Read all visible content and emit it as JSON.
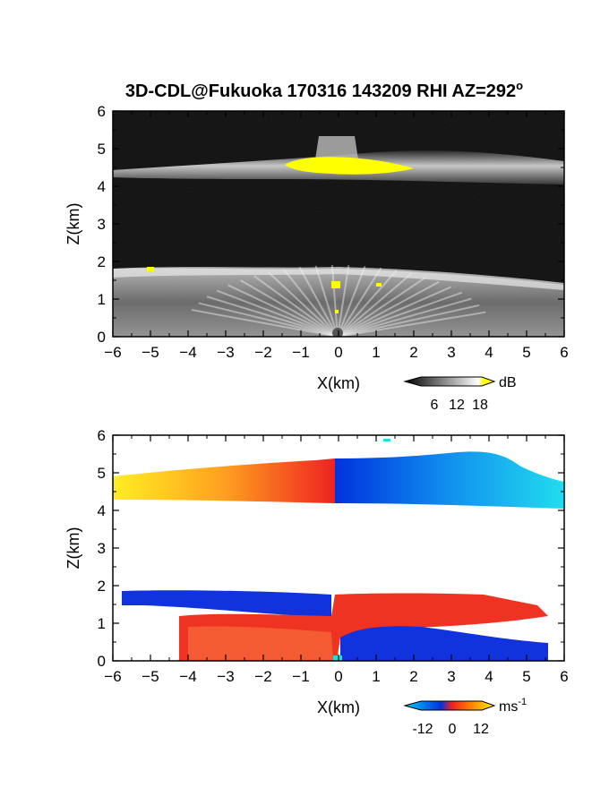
{
  "title_main": "3D-CDL@Fukuoka 170316 143209 RHI AZ=292",
  "title_deg": "o",
  "chart_data": [
    {
      "type": "heatmap",
      "quantity": "reflectivity",
      "xlabel": "X(km)",
      "ylabel": "Z(km)",
      "xlim": [
        -6,
        6
      ],
      "ylim": [
        0,
        6
      ],
      "xticks": [
        "-6",
        "-5",
        "-4",
        "-3",
        "-2",
        "-1",
        "0",
        "1",
        "2",
        "3",
        "4",
        "5",
        "6"
      ],
      "yticks": [
        "0",
        "1",
        "2",
        "3",
        "4",
        "5",
        "6"
      ],
      "colorbar": {
        "unit": "dB",
        "ticks": [
          "6",
          "12",
          "18"
        ],
        "colors": [
          "#000000",
          "#ffffff",
          "#ffff00"
        ]
      },
      "features": [
        {
          "name": "upper layer",
          "z_range": [
            4.3,
            5.0
          ],
          "x_range": [
            -6,
            6
          ]
        },
        {
          "name": "upper layer high-reflectivity core",
          "z_range": [
            4.35,
            4.7
          ],
          "x_range": [
            -1.3,
            2.0
          ],
          "dB": 18
        },
        {
          "name": "lower layer",
          "z_range": [
            0,
            1.8
          ],
          "x_range": [
            -6,
            6
          ]
        },
        {
          "name": "lower layer top",
          "z_range": [
            1.55,
            1.8
          ],
          "x_range": [
            -6,
            6
          ]
        }
      ]
    },
    {
      "type": "heatmap",
      "quantity": "Doppler velocity",
      "xlabel": "X(km)",
      "ylabel": "Z(km)",
      "xlim": [
        -6,
        6
      ],
      "ylim": [
        0,
        6
      ],
      "xticks": [
        "-6",
        "-5",
        "-4",
        "-3",
        "-2",
        "-1",
        "0",
        "1",
        "2",
        "3",
        "4",
        "5",
        "6"
      ],
      "yticks": [
        "0",
        "1",
        "2",
        "3",
        "4",
        "5",
        "6"
      ],
      "colorbar": {
        "unit": "ms",
        "unit_exp": "-1",
        "ticks": [
          "-12",
          "0",
          "12"
        ],
        "colors": [
          "#00ccff",
          "#0044ee",
          "#ee2020",
          "#ffee00"
        ]
      },
      "regions": [
        {
          "layer": "upper",
          "x_range": [
            -6,
            -0.1
          ],
          "z_range": [
            4.25,
            5.1
          ],
          "velocity_range": [
            12,
            2
          ]
        },
        {
          "layer": "upper",
          "x_range": [
            -0.1,
            6
          ],
          "z_range": [
            4.1,
            5.5
          ],
          "velocity_range": [
            -2,
            -12
          ]
        },
        {
          "layer": "lower",
          "x_range": [
            -6,
            -0.3
          ],
          "z_range": [
            1.3,
            1.8
          ],
          "velocity": -5
        },
        {
          "layer": "lower",
          "x_range": [
            -4.3,
            0
          ],
          "z_range": [
            0,
            1.3
          ],
          "velocity": 5
        },
        {
          "layer": "lower",
          "x_range": [
            0,
            5.7
          ],
          "z_range": [
            0.8,
            1.75
          ],
          "velocity": 5
        },
        {
          "layer": "lower",
          "x_range": [
            0,
            5.5
          ],
          "z_range": [
            0,
            0.9
          ],
          "velocity": -6
        }
      ]
    }
  ]
}
